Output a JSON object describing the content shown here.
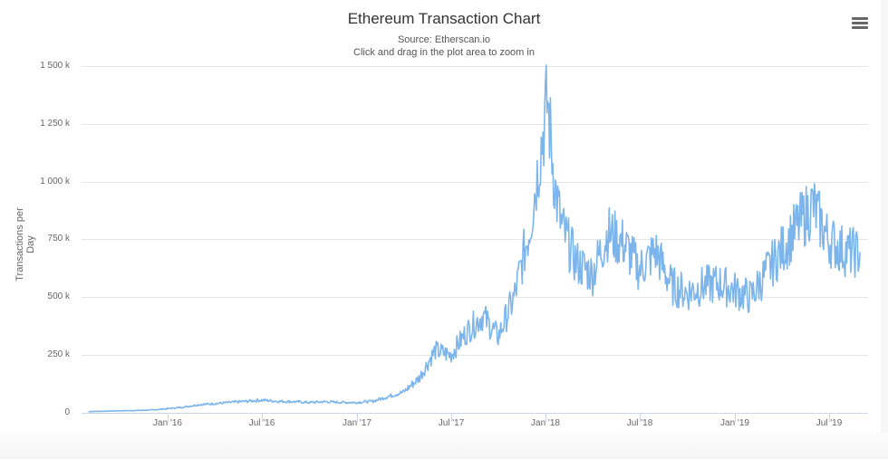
{
  "header": {
    "title": "Ethereum Transaction Chart",
    "subtitle_source": "Source: Etherscan.io",
    "subtitle_hint": "Click and drag in the plot area to zoom in",
    "menu_icon": "hamburger-menu-icon"
  },
  "axes": {
    "ylabel": "Transactions per Day",
    "yticks": [
      "0",
      "250 k",
      "500 k",
      "750 k",
      "1 000 k",
      "1 250 k",
      "1 500 k"
    ],
    "xticks": [
      "Jan '16",
      "Jul '16",
      "Jan '17",
      "Jul '17",
      "Jan '18",
      "Jul '18",
      "Jan '19",
      "Jul '19"
    ]
  },
  "colors": {
    "series": "#7cb5ec",
    "grid": "#e6e6e6",
    "axis": "#ccd6eb"
  },
  "chart_data": {
    "type": "line",
    "title": "Ethereum Transaction Chart",
    "subtitle": "Source: Etherscan.io",
    "xlabel": "",
    "ylabel": "Transactions per Day",
    "ylim": [
      0,
      1500000
    ],
    "grid": true,
    "legend": "none",
    "x_tick_labels": [
      "Jan '16",
      "Jul '16",
      "Jan '17",
      "Jul '17",
      "Jan '18",
      "Jul '18",
      "Jan '19",
      "Jul '19"
    ],
    "series": [
      {
        "name": "Transactions per Day",
        "x": [
          "2015-08",
          "2015-09",
          "2015-10",
          "2015-11",
          "2015-12",
          "2016-01",
          "2016-02",
          "2016-03",
          "2016-04",
          "2016-05",
          "2016-06",
          "2016-07",
          "2016-08",
          "2016-09",
          "2016-10",
          "2016-11",
          "2016-12",
          "2017-01",
          "2017-02",
          "2017-03",
          "2017-04",
          "2017-05",
          "2017-06",
          "2017-07",
          "2017-08",
          "2017-09",
          "2017-10",
          "2017-11",
          "2017-12",
          "2018-01-04",
          "2018-01-20",
          "2018-02",
          "2018-03",
          "2018-04",
          "2018-05",
          "2018-06",
          "2018-07",
          "2018-08",
          "2018-09",
          "2018-10",
          "2018-11",
          "2018-12",
          "2019-01",
          "2019-02",
          "2019-03",
          "2019-04",
          "2019-05",
          "2019-06",
          "2019-07",
          "2019-08",
          "2019-09"
        ],
        "values": [
          5000,
          7000,
          9000,
          10000,
          12000,
          18000,
          25000,
          35000,
          40000,
          45000,
          50000,
          55000,
          50000,
          48000,
          45000,
          48000,
          45000,
          45000,
          50000,
          70000,
          90000,
          150000,
          270000,
          250000,
          350000,
          420000,
          330000,
          500000,
          800000,
          1349000,
          950000,
          800000,
          650000,
          600000,
          780000,
          730000,
          620000,
          700000,
          550000,
          520000,
          550000,
          560000,
          530000,
          500000,
          600000,
          700000,
          800000,
          900000,
          750000,
          700000,
          690000
        ]
      }
    ]
  }
}
